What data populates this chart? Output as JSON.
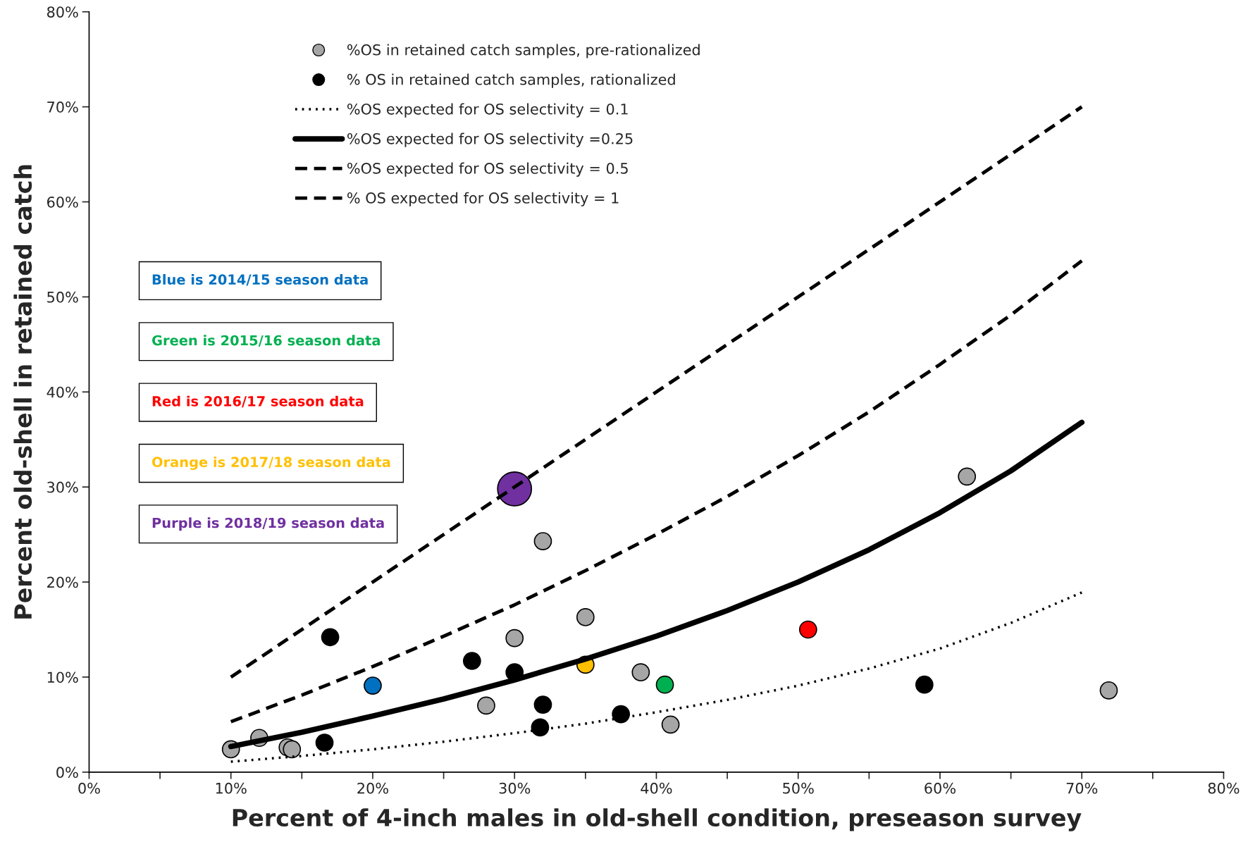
{
  "chart_data": {
    "type": "scatter",
    "xlabel": "Percent of 4-inch males in old-shell condition, preseason survey",
    "ylabel": "Percent old-shell in retained catch",
    "xlim": [
      0,
      80
    ],
    "ylim": [
      0,
      80
    ],
    "xticks": [
      {
        "value": 0,
        "label": "0%"
      },
      {
        "value": 5,
        "label": null
      },
      {
        "value": 10,
        "label": "10%"
      },
      {
        "value": 15,
        "label": null
      },
      {
        "value": 20,
        "label": "20%"
      },
      {
        "value": 25,
        "label": null
      },
      {
        "value": 30,
        "label": "30%"
      },
      {
        "value": 35,
        "label": null
      },
      {
        "value": 40,
        "label": "40%"
      },
      {
        "value": 45,
        "label": null
      },
      {
        "value": 50,
        "label": "50%"
      },
      {
        "value": 55,
        "label": null
      },
      {
        "value": 60,
        "label": "60%"
      },
      {
        "value": 65,
        "label": null
      },
      {
        "value": 70,
        "label": "70%"
      },
      {
        "value": 75,
        "label": null
      },
      {
        "value": 80,
        "label": "80%"
      }
    ],
    "yticks": [
      {
        "value": 0,
        "label": "0%"
      },
      {
        "value": 10,
        "label": "10%"
      },
      {
        "value": 20,
        "label": "20%"
      },
      {
        "value": 30,
        "label": "30%"
      },
      {
        "value": 40,
        "label": "40%"
      },
      {
        "value": 50,
        "label": "50%"
      },
      {
        "value": 60,
        "label": "60%"
      },
      {
        "value": 70,
        "label": "70%"
      },
      {
        "value": 80,
        "label": "80%"
      }
    ],
    "grid": false,
    "legend": "top",
    "series": [
      {
        "type": "scatter",
        "name": "%OS in retained catch samples, pre-rationalized",
        "color": "#a6a6a6",
        "marker": "circle",
        "x": [
          10.0,
          12.0,
          14.0,
          14.3,
          28.0,
          30.0,
          32.0,
          35.0,
          38.9,
          41.0,
          61.9,
          71.9
        ],
        "values": [
          2.4,
          3.6,
          2.6,
          2.4,
          7.0,
          14.1,
          24.3,
          16.3,
          10.5,
          5.0,
          31.1,
          8.6
        ]
      },
      {
        "type": "scatter",
        "name": "% OS in retained catch samples, rationalized",
        "color": "#000000",
        "marker": "circle",
        "x": [
          17.0,
          16.6,
          27.0,
          30.0,
          32.0,
          31.8,
          37.5,
          58.9
        ],
        "values": [
          14.2,
          3.1,
          11.7,
          10.5,
          7.1,
          4.7,
          6.1,
          9.2
        ]
      },
      {
        "type": "line",
        "name": "%OS expected for OS selectivity = 0.1",
        "color": "#000000",
        "line_style": "dotted",
        "x": [
          10,
          15,
          20,
          25,
          30,
          35,
          40,
          45,
          50,
          55,
          60,
          65,
          70
        ],
        "values": [
          1.1,
          1.7,
          2.4,
          3.2,
          4.1,
          5.1,
          6.3,
          7.6,
          9.1,
          10.9,
          13.0,
          15.7,
          18.9
        ]
      },
      {
        "type": "line",
        "name": "%OS expected for OS selectivity =0.25",
        "color": "#000000",
        "line_style": "solid",
        "x": [
          10,
          15,
          20,
          25,
          30,
          35,
          40,
          45,
          50,
          55,
          60,
          65,
          70
        ],
        "values": [
          2.7,
          4.2,
          5.9,
          7.7,
          9.7,
          11.9,
          14.3,
          17.0,
          20.0,
          23.4,
          27.3,
          31.7,
          36.8
        ]
      },
      {
        "type": "line",
        "name": "%OS expected for OS selectivity = 0.5",
        "color": "#000000",
        "line_style": "dashed",
        "x": [
          10,
          15,
          20,
          25,
          30,
          35,
          40,
          45,
          50,
          55,
          60,
          65,
          70
        ],
        "values": [
          5.3,
          8.1,
          11.1,
          14.3,
          17.6,
          21.2,
          25.0,
          29.0,
          33.3,
          37.9,
          42.9,
          48.1,
          53.8
        ]
      },
      {
        "type": "line",
        "name": "% OS expected for OS selectivity = 1",
        "color": "#000000",
        "line_style": "dashed",
        "x": [
          10,
          70
        ],
        "values": [
          10,
          70
        ]
      },
      {
        "type": "scatter",
        "name": "Blue is 2014/15 season data",
        "color": "#0070c0",
        "marker": "circle",
        "x": [
          20.0
        ],
        "values": [
          9.1
        ]
      },
      {
        "type": "scatter",
        "name": "Green is 2015/16 season data",
        "color": "#00b050",
        "marker": "circle",
        "x": [
          40.6
        ],
        "values": [
          9.2
        ]
      },
      {
        "type": "scatter",
        "name": "Red is 2016/17 season data",
        "color": "#ff0000",
        "marker": "circle",
        "x": [
          50.7
        ],
        "values": [
          15.0
        ]
      },
      {
        "type": "scatter",
        "name": "Orange is 2017/18 season data",
        "color": "#ffc000",
        "marker": "circle",
        "x": [
          35.0
        ],
        "values": [
          11.3
        ]
      },
      {
        "type": "bubble",
        "name": "Purple is 2018/19 season data",
        "color": "#7030a0",
        "marker": "circle",
        "x": [
          30.0
        ],
        "values": [
          29.8
        ],
        "sizes": [
          1
        ]
      }
    ]
  }
}
